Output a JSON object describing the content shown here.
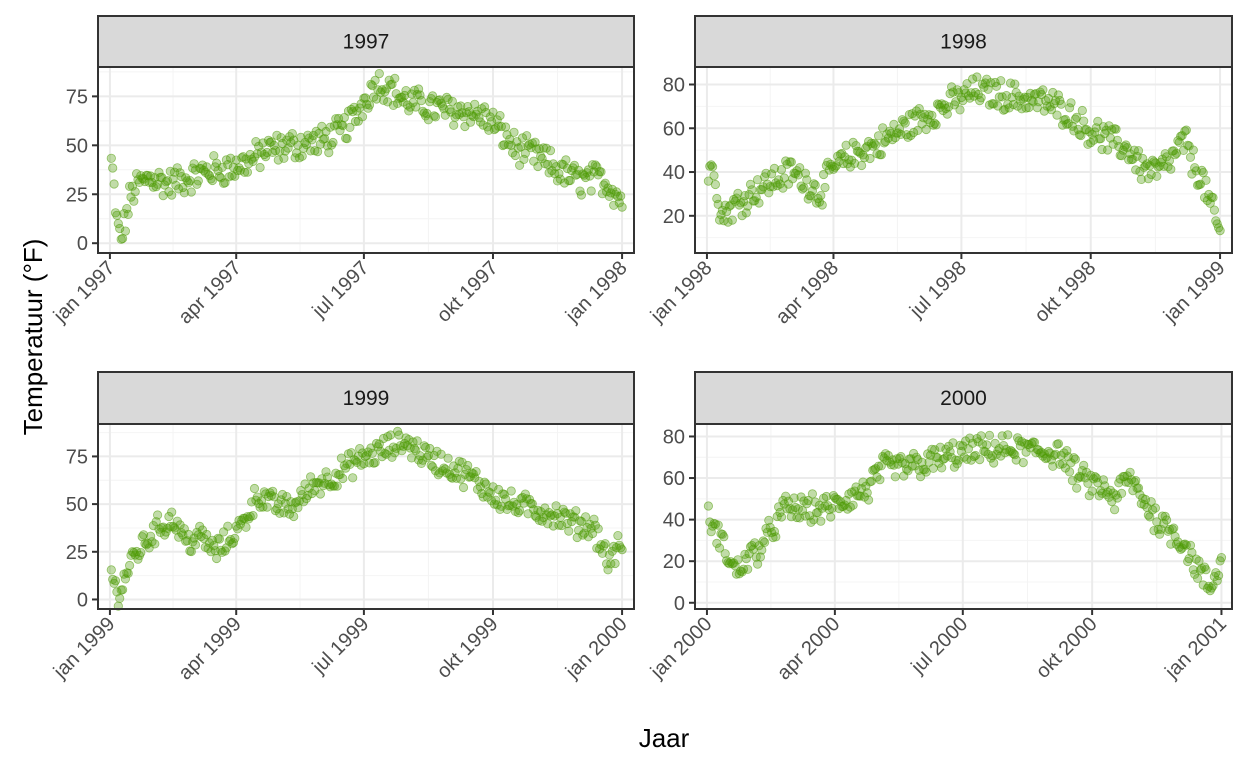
{
  "chart_data": {
    "type": "scatter",
    "xlabel": "Jaar",
    "ylabel": "Temperatuur (°F)",
    "point_color": "#4e9a06",
    "panels": [
      {
        "title": "1997",
        "year": 1997,
        "ylim": [
          -5,
          90
        ],
        "yticks": [
          0,
          25,
          50,
          75
        ],
        "xtick_labels": [
          "jan 1997",
          "apr 1997",
          "jul 1997",
          "okt 1997",
          "jan 1998"
        ],
        "anchors": [
          [
            1,
            42
          ],
          [
            3,
            27
          ],
          [
            5,
            10
          ],
          [
            8,
            2
          ],
          [
            12,
            15
          ],
          [
            15,
            25
          ],
          [
            20,
            30
          ],
          [
            30,
            34
          ],
          [
            40,
            30
          ],
          [
            55,
            33
          ],
          [
            70,
            37
          ],
          [
            85,
            38
          ],
          [
            100,
            42
          ],
          [
            110,
            47
          ],
          [
            130,
            50
          ],
          [
            150,
            52
          ],
          [
            165,
            57
          ],
          [
            175,
            65
          ],
          [
            183,
            75
          ],
          [
            190,
            82
          ],
          [
            198,
            80
          ],
          [
            210,
            73
          ],
          [
            225,
            70
          ],
          [
            240,
            68
          ],
          [
            255,
            67
          ],
          [
            265,
            65
          ],
          [
            275,
            60
          ],
          [
            290,
            48
          ],
          [
            305,
            44
          ],
          [
            320,
            37
          ],
          [
            335,
            32
          ],
          [
            350,
            33
          ],
          [
            358,
            28
          ],
          [
            365,
            22
          ]
        ],
        "noise": 7
      },
      {
        "title": "1998",
        "year": 1998,
        "ylim": [
          3,
          88
        ],
        "yticks": [
          20,
          40,
          60,
          80
        ],
        "xtick_labels": [
          "jan 1998",
          "apr 1998",
          "jul 1998",
          "okt 1998",
          "jan 1999"
        ],
        "anchors": [
          [
            1,
            38
          ],
          [
            5,
            43
          ],
          [
            10,
            20
          ],
          [
            20,
            25
          ],
          [
            35,
            32
          ],
          [
            50,
            37
          ],
          [
            60,
            40
          ],
          [
            70,
            36
          ],
          [
            80,
            30
          ],
          [
            90,
            42
          ],
          [
            105,
            48
          ],
          [
            120,
            52
          ],
          [
            140,
            60
          ],
          [
            160,
            67
          ],
          [
            175,
            72
          ],
          [
            190,
            77
          ],
          [
            205,
            76
          ],
          [
            220,
            74
          ],
          [
            240,
            72
          ],
          [
            255,
            68
          ],
          [
            270,
            60
          ],
          [
            285,
            55
          ],
          [
            300,
            50
          ],
          [
            310,
            42
          ],
          [
            320,
            40
          ],
          [
            330,
            45
          ],
          [
            340,
            55
          ],
          [
            345,
            45
          ],
          [
            352,
            37
          ],
          [
            358,
            25
          ],
          [
            365,
            12
          ]
        ],
        "noise": 6
      },
      {
        "title": "1999",
        "year": 1999,
        "ylim": [
          -5,
          92
        ],
        "yticks": [
          0,
          25,
          50,
          75
        ],
        "xtick_labels": [
          "jan 1999",
          "apr 1999",
          "jul 1999",
          "okt 1999",
          "jan 2000"
        ],
        "anchors": [
          [
            1,
            15
          ],
          [
            5,
            2
          ],
          [
            10,
            10
          ],
          [
            15,
            20
          ],
          [
            25,
            30
          ],
          [
            35,
            38
          ],
          [
            45,
            42
          ],
          [
            55,
            30
          ],
          [
            65,
            33
          ],
          [
            75,
            25
          ],
          [
            85,
            32
          ],
          [
            95,
            40
          ],
          [
            105,
            55
          ],
          [
            115,
            50
          ],
          [
            130,
            48
          ],
          [
            145,
            60
          ],
          [
            160,
            65
          ],
          [
            175,
            72
          ],
          [
            190,
            77
          ],
          [
            200,
            80
          ],
          [
            210,
            83
          ],
          [
            225,
            75
          ],
          [
            240,
            70
          ],
          [
            255,
            65
          ],
          [
            270,
            57
          ],
          [
            285,
            50
          ],
          [
            300,
            48
          ],
          [
            315,
            45
          ],
          [
            330,
            40
          ],
          [
            345,
            38
          ],
          [
            355,
            20
          ],
          [
            365,
            30
          ]
        ],
        "noise": 6
      },
      {
        "title": "2000",
        "year": 2000,
        "ylim": [
          -3,
          86
        ],
        "yticks": [
          0,
          20,
          40,
          60,
          80
        ],
        "xtick_labels": [
          "jan 2000",
          "apr 2000",
          "jul 2000",
          "okt 2000",
          "jan 2001"
        ],
        "anchors": [
          [
            1,
            40
          ],
          [
            10,
            30
          ],
          [
            20,
            15
          ],
          [
            30,
            22
          ],
          [
            40,
            28
          ],
          [
            55,
            45
          ],
          [
            70,
            45
          ],
          [
            85,
            45
          ],
          [
            100,
            50
          ],
          [
            115,
            55
          ],
          [
            125,
            65
          ],
          [
            140,
            65
          ],
          [
            155,
            67
          ],
          [
            170,
            70
          ],
          [
            190,
            73
          ],
          [
            210,
            74
          ],
          [
            230,
            73
          ],
          [
            250,
            72
          ],
          [
            265,
            60
          ],
          [
            280,
            55
          ],
          [
            290,
            50
          ],
          [
            300,
            60
          ],
          [
            310,
            50
          ],
          [
            320,
            40
          ],
          [
            330,
            35
          ],
          [
            340,
            28
          ],
          [
            350,
            15
          ],
          [
            358,
            7
          ],
          [
            365,
            18
          ]
        ],
        "noise": 6
      }
    ]
  }
}
